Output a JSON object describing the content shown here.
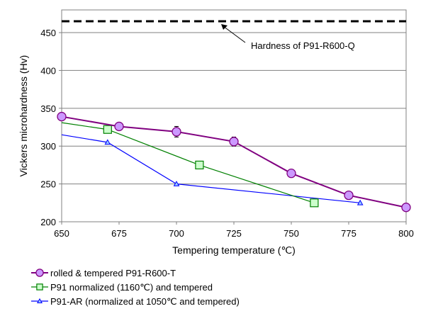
{
  "chart_data": {
    "type": "line",
    "xlabel": "Tempering temperature (℃)",
    "ylabel": "Vickers microhardness (Hv)",
    "xlim": [
      650,
      800
    ],
    "ylim": [
      200,
      480
    ],
    "x_ticks": [
      650,
      675,
      700,
      725,
      750,
      775,
      800
    ],
    "y_ticks": [
      200,
      250,
      300,
      350,
      400,
      450
    ],
    "grid": "horizontal",
    "legend_position": "bottom-left, outside plot",
    "reference_line": {
      "y": 465,
      "style": "dashed",
      "label": "Hardness of P91-R600-Q"
    },
    "series": [
      {
        "name": "rolled & tempered P91-R600-T",
        "marker": "circle",
        "color": "#800080",
        "fill": "#CC99FF",
        "x": [
          650,
          675,
          700,
          725,
          750,
          775,
          800
        ],
        "y": [
          339,
          326,
          319,
          306,
          264,
          235,
          219
        ],
        "errors": [
          0,
          0,
          7,
          6,
          0,
          0,
          0
        ]
      },
      {
        "name": "P91 normalized (1160℃) and tempered",
        "marker": "square",
        "color": "#008000",
        "fill": "#CCFFCC",
        "x": [
          650,
          670,
          710,
          760
        ],
        "y": [
          331,
          322,
          275,
          225
        ]
      },
      {
        "name": "P91-AR (normalized at 1050℃ and tempered)",
        "marker": "triangle",
        "color": "#0000FF",
        "fill": "#99CCFF",
        "x": [
          650,
          670,
          700,
          780
        ],
        "y": [
          315,
          305,
          250,
          225
        ]
      }
    ]
  }
}
